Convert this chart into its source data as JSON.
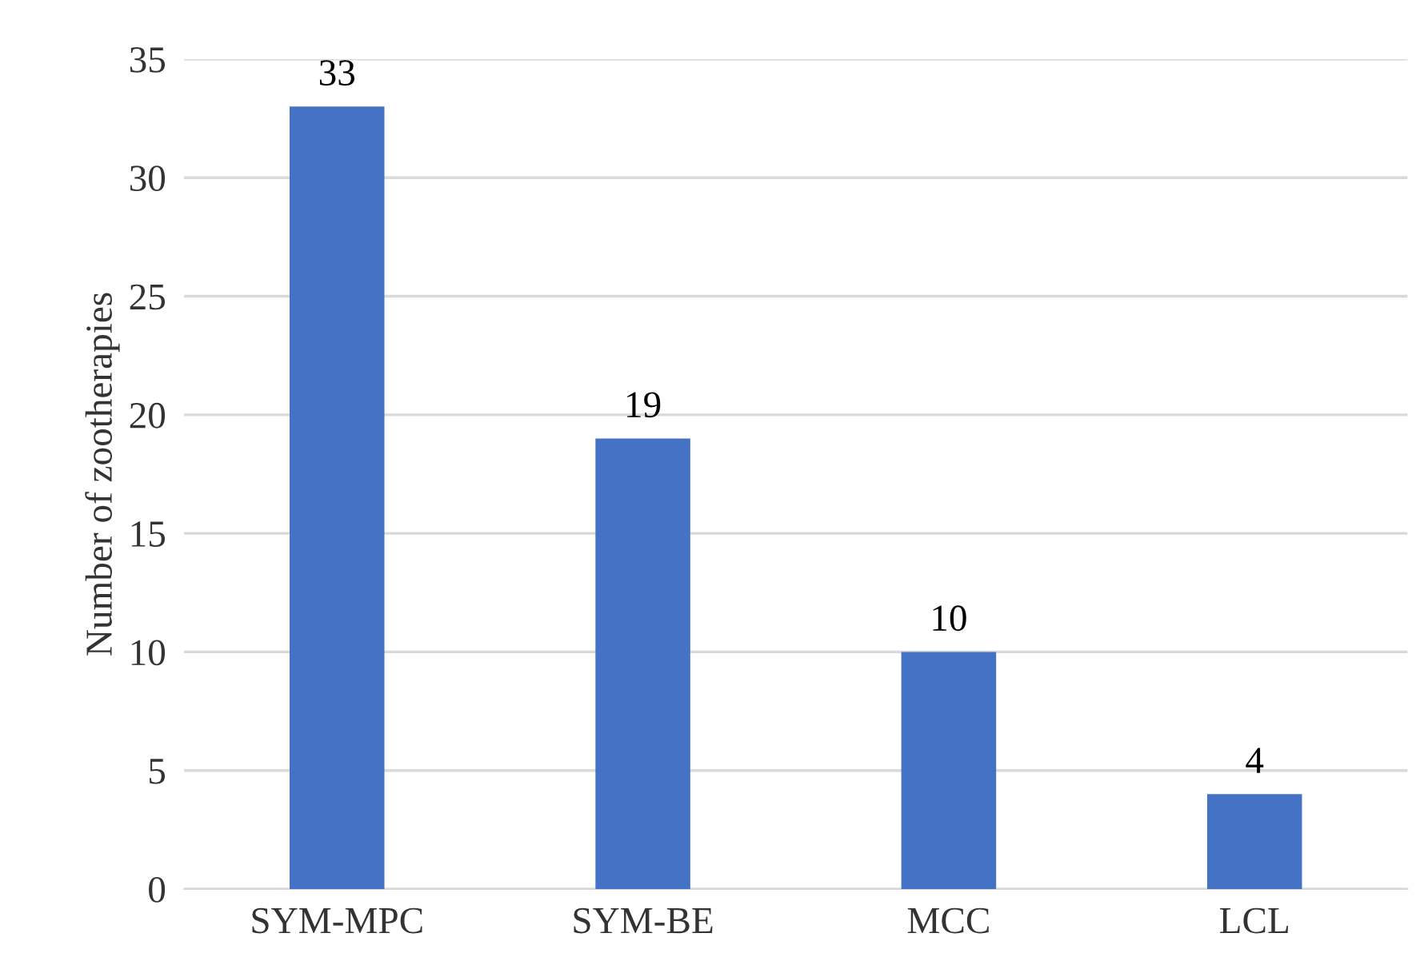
{
  "chart_data": {
    "type": "bar",
    "ylabel": "Number of zootherapies",
    "categories": [
      "SYM-MPC",
      "SYM-BE",
      "MCC",
      "LCL"
    ],
    "values": [
      33,
      19,
      10,
      4
    ],
    "color": "#4472c4",
    "ylim": [
      0,
      35
    ],
    "yticks": [
      0,
      5,
      10,
      15,
      20,
      25,
      30,
      35
    ],
    "grid": "y",
    "data_labels": true,
    "legend": false
  }
}
